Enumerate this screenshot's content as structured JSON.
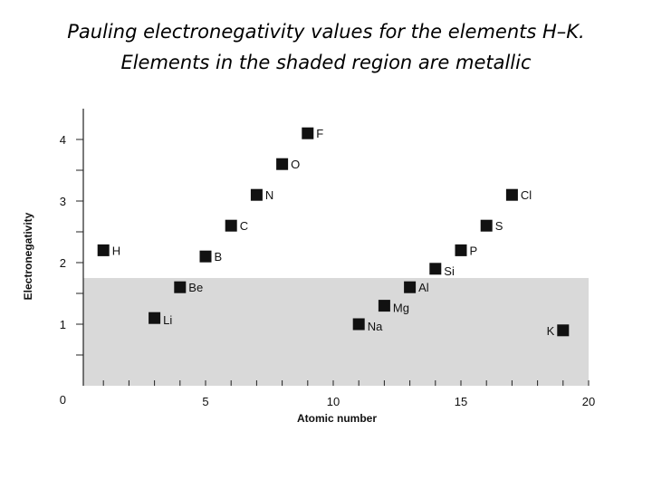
{
  "title_line1": "Pauling electronegativity values for the elements H–K.",
  "title_line2": "Elements in the shaded region are metallic",
  "chart_data": {
    "type": "scatter",
    "xlabel": "Atomic number",
    "ylabel": "Electronegativity",
    "xlim": [
      0,
      20
    ],
    "ylim": [
      0,
      4.5
    ],
    "x_ticks": [
      0,
      5,
      10,
      15,
      20
    ],
    "y_ticks": [
      1,
      2,
      3,
      4
    ],
    "metallic_region_max_y": 1.75,
    "shade_color": "#d9d9d9",
    "marker_color": "#111111",
    "grid": false,
    "points": [
      {
        "x": 1,
        "y": 2.2,
        "label": "H"
      },
      {
        "x": 3,
        "y": 1.1,
        "label": "Li"
      },
      {
        "x": 4,
        "y": 1.6,
        "label": "Be"
      },
      {
        "x": 5,
        "y": 2.1,
        "label": "B"
      },
      {
        "x": 6,
        "y": 2.6,
        "label": "C"
      },
      {
        "x": 7,
        "y": 3.1,
        "label": "N"
      },
      {
        "x": 8,
        "y": 3.6,
        "label": "O"
      },
      {
        "x": 9,
        "y": 4.1,
        "label": "F"
      },
      {
        "x": 11,
        "y": 1.0,
        "label": "Na"
      },
      {
        "x": 12,
        "y": 1.3,
        "label": "Mg"
      },
      {
        "x": 13,
        "y": 1.6,
        "label": "Al"
      },
      {
        "x": 14,
        "y": 1.9,
        "label": "Si"
      },
      {
        "x": 15,
        "y": 2.2,
        "label": "P"
      },
      {
        "x": 16,
        "y": 2.6,
        "label": "S"
      },
      {
        "x": 17,
        "y": 3.1,
        "label": "Cl"
      },
      {
        "x": 19,
        "y": 0.9,
        "label": "K"
      }
    ]
  }
}
